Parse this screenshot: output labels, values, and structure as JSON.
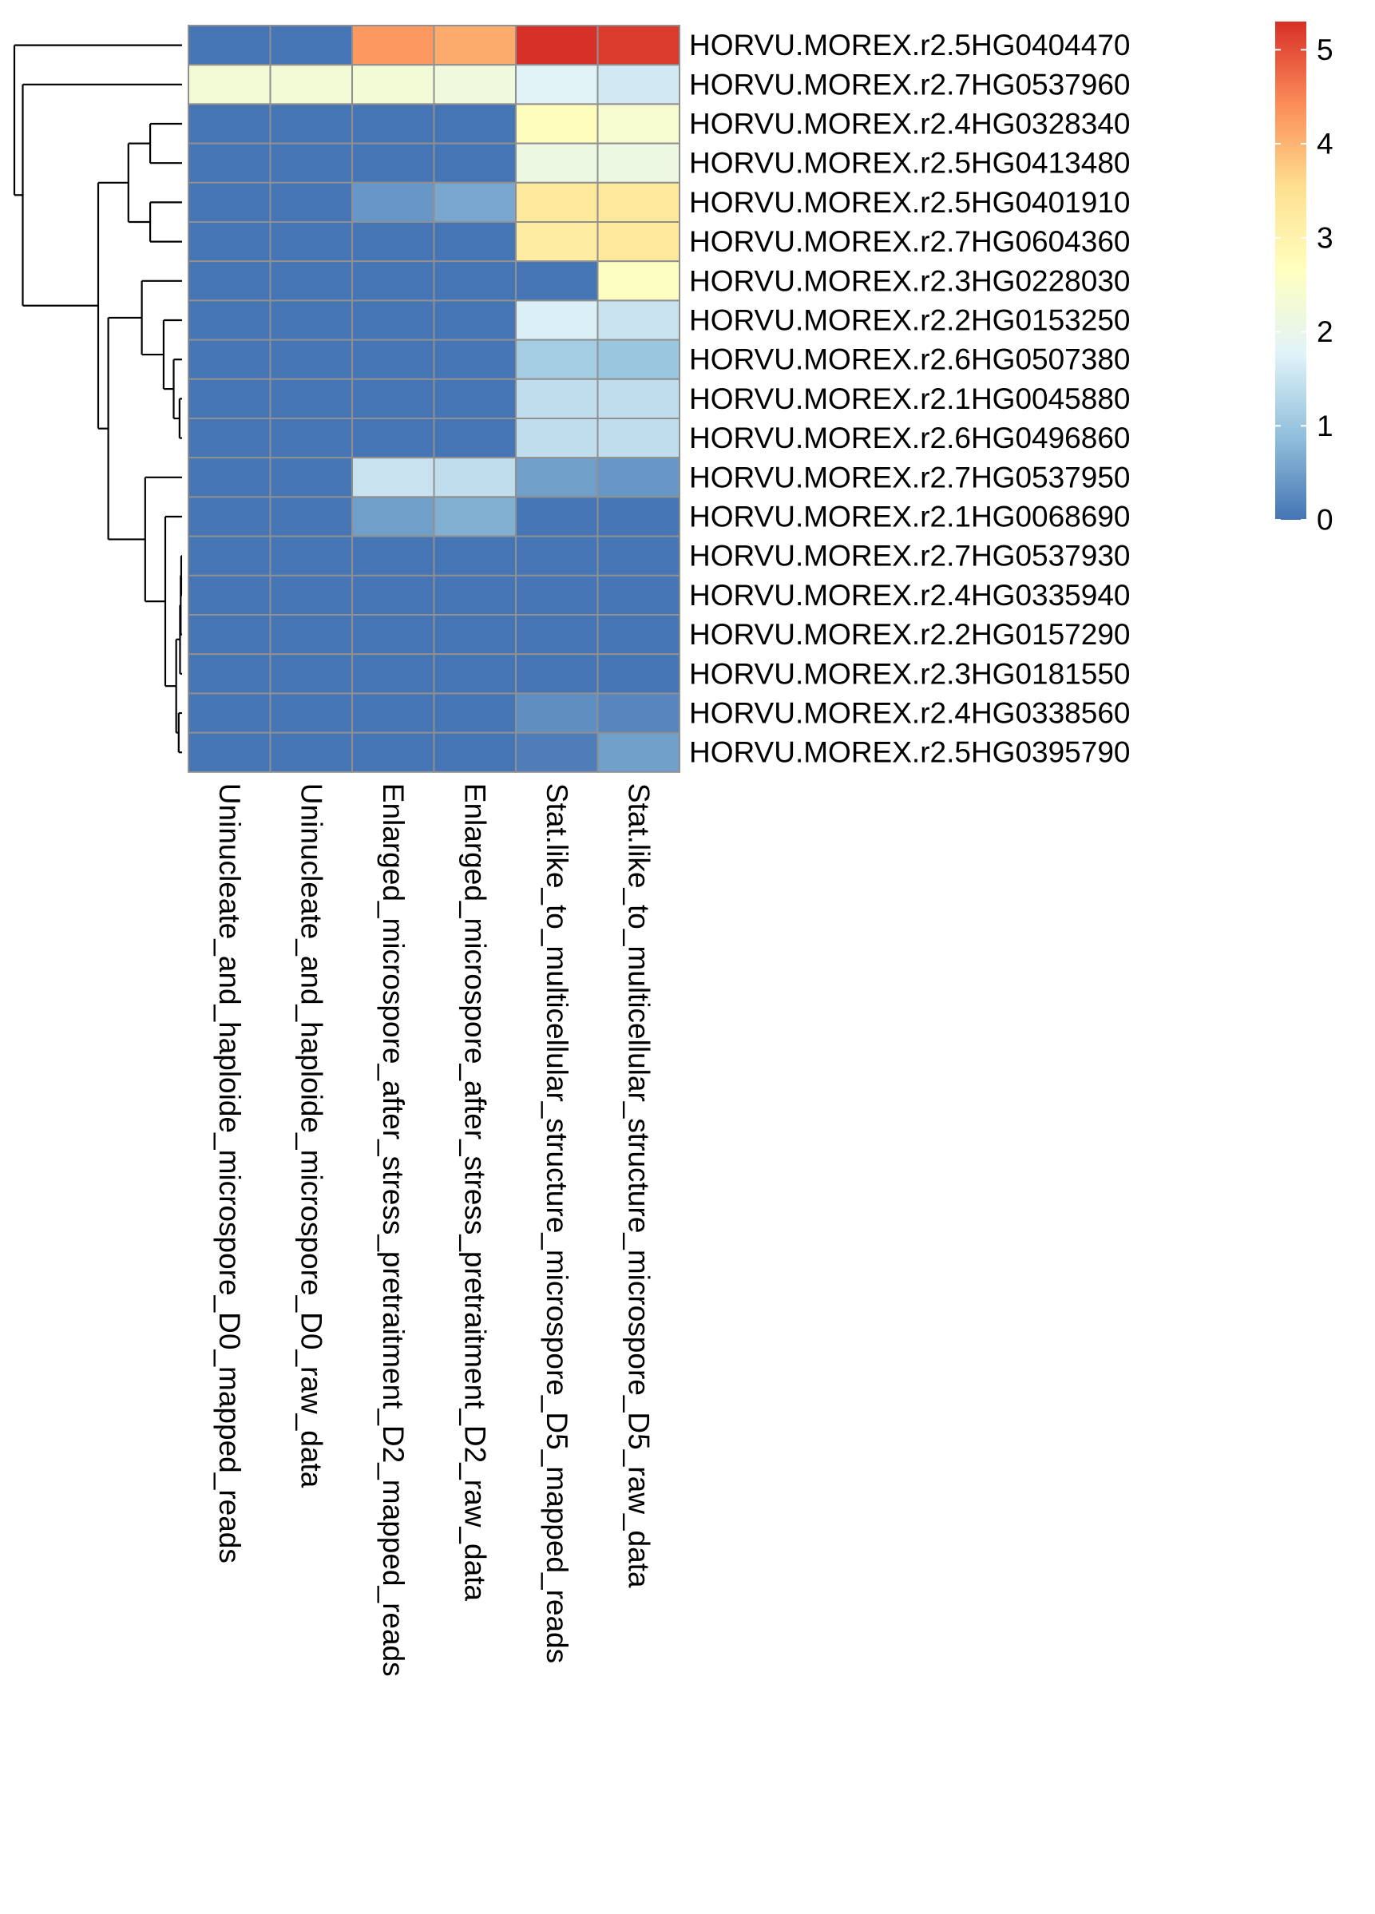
{
  "chart_data": {
    "type": "heatmap",
    "title": "",
    "rows": [
      "HORVU.MOREX.r2.5HG0404470",
      "HORVU.MOREX.r2.7HG0537960",
      "HORVU.MOREX.r2.4HG0328340",
      "HORVU.MOREX.r2.5HG0413480",
      "HORVU.MOREX.r2.5HG0401910",
      "HORVU.MOREX.r2.7HG0604360",
      "HORVU.MOREX.r2.3HG0228030",
      "HORVU.MOREX.r2.2HG0153250",
      "HORVU.MOREX.r2.6HG0507380",
      "HORVU.MOREX.r2.1HG0045880",
      "HORVU.MOREX.r2.6HG0496860",
      "HORVU.MOREX.r2.7HG0537950",
      "HORVU.MOREX.r2.1HG0068690",
      "HORVU.MOREX.r2.7HG0537930",
      "HORVU.MOREX.r2.4HG0335940",
      "HORVU.MOREX.r2.2HG0157290",
      "HORVU.MOREX.r2.3HG0181550",
      "HORVU.MOREX.r2.4HG0338560",
      "HORVU.MOREX.r2.5HG0395790"
    ],
    "columns": [
      "Uninucleate_and_haploide_microspore_D0_mapped_reads",
      "Uninucleate_and_haploide_microspore_D0_raw_data",
      "Enlarged_microspore_after_stress_pretraitment_D2_mapped_reads",
      "Enlarged_microspore_after_stress_pretraitment_D2_raw_data",
      "Stat.like_to_multicellular_structure_microspore_D5_mapped_reads",
      "Stat.like_to_multicellular_structure_microspore_D5_raw_data"
    ],
    "values": [
      [
        0.0,
        0.0,
        4.3,
        4.1,
        5.3,
        5.2
      ],
      [
        2.3,
        2.3,
        2.3,
        2.2,
        1.8,
        1.6
      ],
      [
        0.0,
        0.0,
        0.0,
        0.0,
        2.7,
        2.4
      ],
      [
        0.0,
        0.0,
        0.0,
        0.0,
        2.1,
        2.1
      ],
      [
        0.0,
        0.0,
        0.4,
        0.6,
        3.3,
        3.3
      ],
      [
        0.0,
        0.0,
        0.0,
        0.0,
        3.2,
        3.3
      ],
      [
        0.0,
        0.0,
        0.0,
        0.0,
        0.0,
        2.6
      ],
      [
        0.0,
        0.0,
        0.0,
        0.0,
        1.7,
        1.5
      ],
      [
        0.0,
        0.0,
        0.0,
        0.0,
        1.1,
        1.0
      ],
      [
        0.0,
        0.0,
        0.0,
        0.0,
        1.4,
        1.4
      ],
      [
        0.0,
        0.0,
        0.0,
        0.0,
        1.4,
        1.4
      ],
      [
        0.0,
        0.0,
        1.5,
        1.4,
        0.5,
        0.4
      ],
      [
        0.0,
        0.0,
        0.5,
        0.7,
        0.0,
        0.0
      ],
      [
        0.0,
        0.0,
        0.0,
        0.0,
        0.0,
        0.0
      ],
      [
        0.0,
        0.0,
        0.0,
        0.0,
        0.0,
        0.0
      ],
      [
        0.0,
        0.0,
        0.0,
        0.0,
        0.0,
        0.0
      ],
      [
        0.0,
        0.0,
        0.0,
        0.0,
        0.0,
        0.0
      ],
      [
        0.0,
        0.0,
        0.0,
        0.0,
        0.3,
        0.2
      ],
      [
        0.0,
        0.0,
        0.0,
        0.0,
        0.1,
        0.5
      ]
    ],
    "color_scale": {
      "min": 0,
      "max": 5.3,
      "ticks": [
        "0",
        "1",
        "2",
        "3",
        "4",
        "5"
      ],
      "colors": [
        "#4575B4",
        "#91BFDB",
        "#E0F3F8",
        "#FFFFBF",
        "#FEE090",
        "#FC8D59",
        "#D73027"
      ]
    },
    "cell_border_color": "#909090",
    "row_dendrogram": "left",
    "legend": "right"
  }
}
